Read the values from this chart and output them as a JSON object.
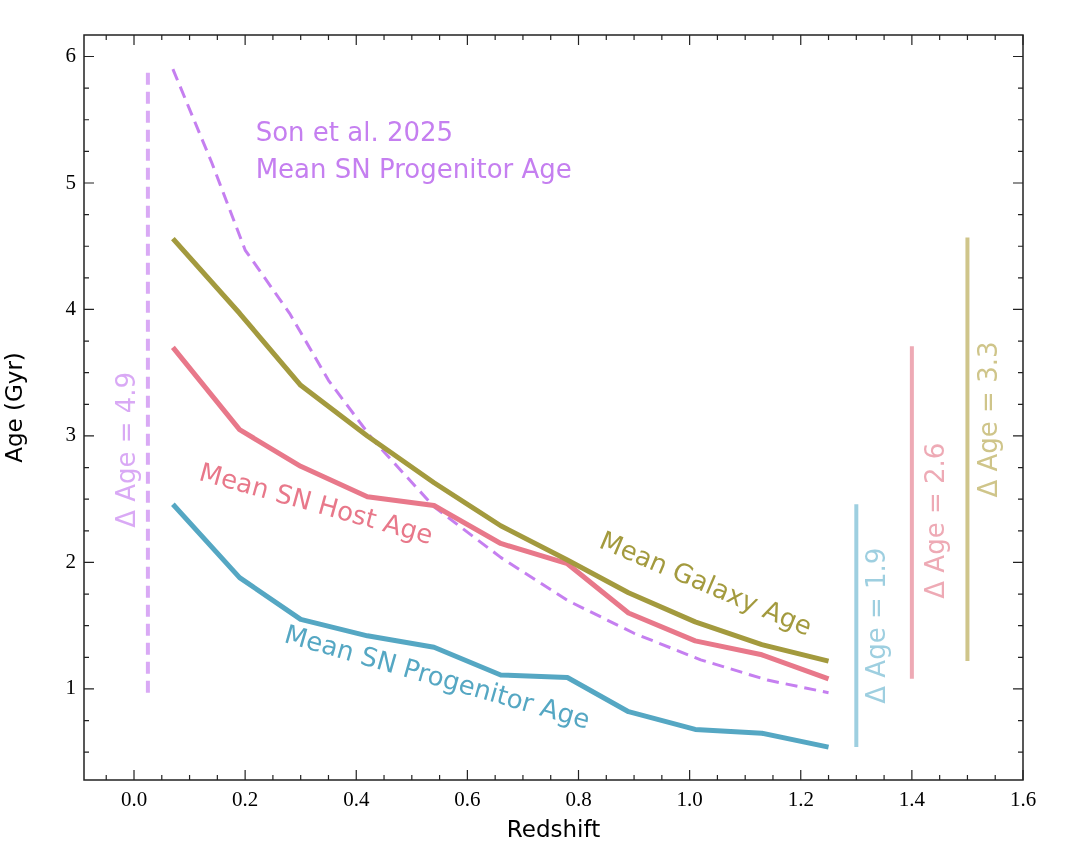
{
  "chart_data": {
    "type": "line",
    "xlabel": "Redshift",
    "ylabel": "Age (Gyr)",
    "xlim": [
      -0.09,
      1.6
    ],
    "ylim": [
      0.28,
      6.17
    ],
    "xticks": [
      {
        "value": -0.05,
        "label": null
      },
      {
        "value": 0,
        "label": "0.0"
      },
      {
        "value": 0.05,
        "label": null
      },
      {
        "value": 0.1,
        "label": null
      },
      {
        "value": 0.15,
        "label": null
      },
      {
        "value": 0.2,
        "label": "0.2"
      },
      {
        "value": 0.25,
        "label": null
      },
      {
        "value": 0.3,
        "label": null
      },
      {
        "value": 0.35,
        "label": null
      },
      {
        "value": 0.4,
        "label": "0.4"
      },
      {
        "value": 0.45,
        "label": null
      },
      {
        "value": 0.5,
        "label": null
      },
      {
        "value": 0.55,
        "label": null
      },
      {
        "value": 0.6,
        "label": "0.6"
      },
      {
        "value": 0.65,
        "label": null
      },
      {
        "value": 0.7,
        "label": null
      },
      {
        "value": 0.75,
        "label": null
      },
      {
        "value": 0.8,
        "label": "0.8"
      },
      {
        "value": 0.85,
        "label": null
      },
      {
        "value": 0.9,
        "label": null
      },
      {
        "value": 0.95,
        "label": null
      },
      {
        "value": 1,
        "label": "1.0"
      },
      {
        "value": 1.05,
        "label": null
      },
      {
        "value": 1.1,
        "label": null
      },
      {
        "value": 1.15,
        "label": null
      },
      {
        "value": 1.2,
        "label": "1.2"
      },
      {
        "value": 1.25,
        "label": null
      },
      {
        "value": 1.3,
        "label": null
      },
      {
        "value": 1.35,
        "label": null
      },
      {
        "value": 1.4,
        "label": "1.4"
      },
      {
        "value": 1.45,
        "label": null
      },
      {
        "value": 1.5,
        "label": null
      },
      {
        "value": 1.55,
        "label": null
      },
      {
        "value": 1.6,
        "label": "1.6"
      }
    ],
    "yticks": [
      {
        "value": 0.5,
        "label": null
      },
      {
        "value": 0.75,
        "label": null
      },
      1,
      {
        "value": 1.25,
        "label": null
      },
      {
        "value": 1.5,
        "label": null
      },
      {
        "value": 1.75,
        "label": null
      },
      2,
      {
        "value": 2.25,
        "label": null
      },
      {
        "value": 2.5,
        "label": null
      },
      {
        "value": 2.75,
        "label": null
      },
      3,
      {
        "value": 3.25,
        "label": null
      },
      {
        "value": 3.5,
        "label": null
      },
      {
        "value": 3.75,
        "label": null
      },
      4,
      {
        "value": 4.25,
        "label": null
      },
      {
        "value": 4.5,
        "label": null
      },
      {
        "value": 4.75,
        "label": null
      },
      5,
      {
        "value": 5.25,
        "label": null
      },
      {
        "value": 5.5,
        "label": null
      },
      {
        "value": 5.75,
        "label": null
      },
      6
    ],
    "x": [
      0.07,
      0.19,
      0.3,
      0.42,
      0.54,
      0.66,
      0.78,
      0.89,
      1.01,
      1.13,
      1.25
    ],
    "series": [
      {
        "name": "Mean Galaxy Age",
        "color": "#a39a3e",
        "values": [
          4.56,
          3.97,
          3.4,
          3.0,
          2.63,
          2.29,
          2.02,
          1.76,
          1.53,
          1.35,
          1.22
        ]
      },
      {
        "name": "Mean SN Host Age",
        "color": "#e8788a",
        "values": [
          3.7,
          3.05,
          2.76,
          2.52,
          2.45,
          2.15,
          1.99,
          1.6,
          1.38,
          1.27,
          1.08
        ]
      },
      {
        "name": "Mean SN Progenitor Age",
        "color": "#55a7c3",
        "values": [
          2.46,
          1.88,
          1.55,
          1.42,
          1.33,
          1.11,
          1.09,
          0.82,
          0.68,
          0.65,
          0.54
        ]
      },
      {
        "name": "Son et al. 2025\nMean SN Progenitor Age",
        "color": "#c57ff0",
        "line_style": "dashed",
        "x": [
          0.07,
          0.14,
          0.2,
          0.28,
          0.35,
          0.43,
          0.54,
          0.66,
          0.78,
          0.9,
          1.02,
          1.14,
          1.25
        ],
        "values": [
          5.9,
          5.16,
          4.47,
          3.97,
          3.44,
          2.97,
          2.44,
          2.04,
          1.7,
          1.44,
          1.23,
          1.07,
          0.97
        ]
      },
      {
        "name": "Δ Age = 4.9",
        "color": "#d9a9f5",
        "line_style": "dashed",
        "x": [
          0.025,
          0.025
        ],
        "values": [
          0.97,
          5.9
        ]
      },
      {
        "name": "Δ Age = 1.9",
        "color": "#9ecfe0",
        "x": [
          1.3,
          1.3
        ],
        "values": [
          0.54,
          2.46
        ]
      },
      {
        "name": "Δ Age = 2.6",
        "color": "#eeaab5",
        "x": [
          1.4,
          1.4
        ],
        "values": [
          1.08,
          3.71
        ]
      },
      {
        "name": "Δ Age = 3.3",
        "color": "#cfc58a",
        "x": [
          1.5,
          1.5
        ],
        "values": [
          1.22,
          4.57
        ]
      }
    ]
  }
}
